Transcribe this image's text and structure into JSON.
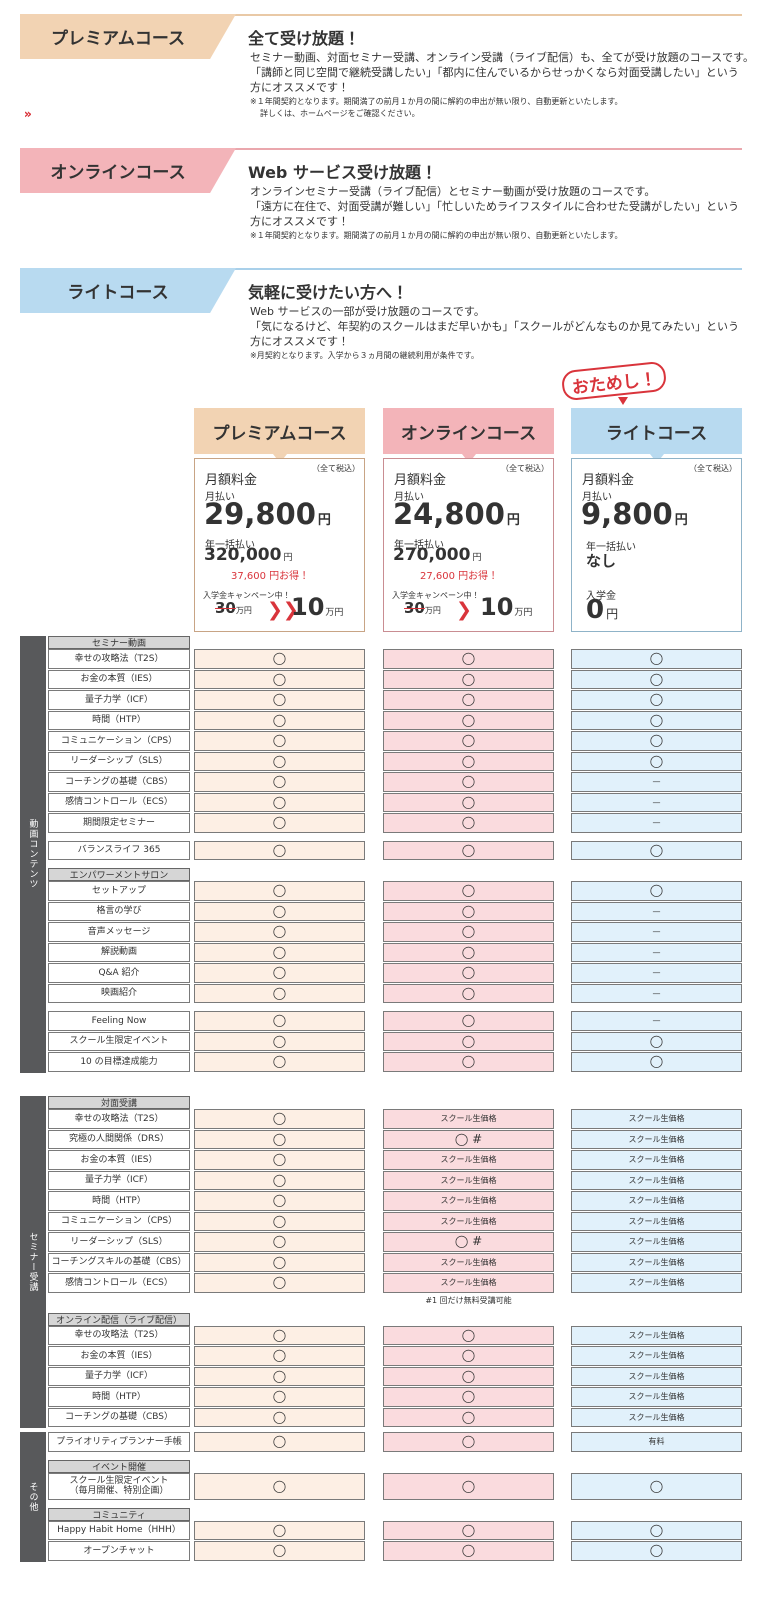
{
  "courses": [
    {
      "label": "プレミアムコース",
      "heading": "全て受け放題！",
      "lines": [
        "セミナー動画、対面セミナー受講、オンライン受講（ライブ配信）も、全てが受け放題のコースです。",
        "「講師と同じ空間で継続受講したい」「都内に住んでいるからせっかくなら対面受講したい」という",
        "方にオススメです！"
      ],
      "notes": [
        "※１年間契約となります。期間満了の前月１か月の間に解約の申出が無い限り、自動更新といたします。",
        "詳しくは、ホームページをご確認ください。"
      ]
    },
    {
      "label": "オンラインコース",
      "heading": "Web サービス受け放題！",
      "lines": [
        "オンラインセミナー受講（ライブ配信）とセミナー動画が受け放題のコースです。",
        "「遠方に在住で、対面受講が難しい」「忙しいためライフスタイルに合わせた受講がしたい」という",
        "方にオススメです！"
      ],
      "notes": [
        "※１年間契約となります。期間満了の前月１か月の間に解約の申出が無い限り、自動更新といたします。"
      ]
    },
    {
      "label": "ライトコース",
      "heading": "気軽に受けたい方へ！",
      "lines": [
        "Web サービスの一部が受け放題のコースです。",
        "「気になるけど、年契約のスクールはまだ早いかも」「スクールがどんなものか見てみたい」という",
        "方にオススメです！"
      ],
      "notes": [
        "※月契約となります。入学から３ヵ月間の継続利用が条件です。"
      ]
    }
  ],
  "badge": "おためし！",
  "plans": [
    {
      "name": "プレミアムコース",
      "tax_note": "（全て税込）",
      "monthly_label": "月額料金",
      "monthly_sub": "月払い",
      "monthly_price": "29,800",
      "price_unit": "円",
      "annual_label": "年一括払い",
      "annual_price": "320,000",
      "annual_unit": "円",
      "saving": "37,600 円お得！",
      "campaign": "入学金キャンペーン中！",
      "old_fee": "30",
      "old_unit": "万円",
      "new_fee": "10",
      "new_unit": "万円"
    },
    {
      "name": "オンラインコース",
      "tax_note": "（全て税込）",
      "monthly_label": "月額料金",
      "monthly_sub": "月払い",
      "monthly_price": "24,800",
      "price_unit": "円",
      "annual_label": "年一括払い",
      "annual_price": "270,000",
      "annual_unit": "円",
      "saving": "27,600 円お得！",
      "campaign": "入学金キャンペーン中！",
      "old_fee": "30",
      "old_unit": "万円",
      "new_fee": "10",
      "new_unit": "万円"
    },
    {
      "name": "ライトコース",
      "tax_note": "（全て税込）",
      "monthly_label": "月額料金",
      "monthly_sub": "月払い",
      "monthly_price": "9,800",
      "price_unit": "円",
      "annual_label": "年一括払い",
      "annual_value": "なし",
      "fee_label": "入学金",
      "fee": "0",
      "fee_unit": "円"
    }
  ],
  "table": {
    "groups": [
      {
        "side": "動画コンテンツ",
        "sections": [
          {
            "header": "セミナー動画",
            "rows": [
              {
                "label": "幸せの攻略法（T2S）",
                "cells": [
                  "◯",
                  "◯",
                  "◯"
                ]
              },
              {
                "label": "お金の本質（IES）",
                "cells": [
                  "◯",
                  "◯",
                  "◯"
                ]
              },
              {
                "label": "量子力学（ICF）",
                "cells": [
                  "◯",
                  "◯",
                  "◯"
                ]
              },
              {
                "label": "時間（HTP）",
                "cells": [
                  "◯",
                  "◯",
                  "◯"
                ]
              },
              {
                "label": "コミュニケーション（CPS）",
                "cells": [
                  "◯",
                  "◯",
                  "◯"
                ]
              },
              {
                "label": "リーダーシップ（SLS）",
                "cells": [
                  "◯",
                  "◯",
                  "◯"
                ]
              },
              {
                "label": "コーチングの基礎（CBS）",
                "cells": [
                  "◯",
                  "◯",
                  "—"
                ]
              },
              {
                "label": "感情コントロール（ECS）",
                "cells": [
                  "◯",
                  "◯",
                  "—"
                ]
              },
              {
                "label": "期間限定セミナー",
                "cells": [
                  "◯",
                  "◯",
                  "—"
                ]
              }
            ]
          },
          {
            "rows": [
              {
                "label": "バランスライフ 365",
                "cells": [
                  "◯",
                  "◯",
                  "◯"
                ]
              }
            ]
          },
          {
            "header": "エンパワーメントサロン",
            "rows": [
              {
                "label": "セットアップ",
                "cells": [
                  "◯",
                  "◯",
                  "◯"
                ]
              },
              {
                "label": "格言の学び",
                "cells": [
                  "◯",
                  "◯",
                  "—"
                ]
              },
              {
                "label": "音声メッセージ",
                "cells": [
                  "◯",
                  "◯",
                  "—"
                ]
              },
              {
                "label": "解説動画",
                "cells": [
                  "◯",
                  "◯",
                  "—"
                ]
              },
              {
                "label": "Q&A 紹介",
                "cells": [
                  "◯",
                  "◯",
                  "—"
                ]
              },
              {
                "label": "映画紹介",
                "cells": [
                  "◯",
                  "◯",
                  "—"
                ]
              }
            ]
          },
          {
            "rows": [
              {
                "label": "Feeling Now",
                "cells": [
                  "◯",
                  "◯",
                  "—"
                ]
              },
              {
                "label": "スクール生限定イベント",
                "cells": [
                  "◯",
                  "◯",
                  "◯"
                ]
              },
              {
                "label": "10 の目標達成能力",
                "cells": [
                  "◯",
                  "◯",
                  "◯"
                ]
              }
            ]
          }
        ]
      },
      {
        "side": "セミナー受講",
        "sections": [
          {
            "header": "対面受講",
            "rows": [
              {
                "label": "幸せの攻略法（T2S）",
                "cells": [
                  "◯",
                  "スクール生価格",
                  "スクール生価格"
                ]
              },
              {
                "label": "究極の人間関係（DRS）",
                "cells": [
                  "◯",
                  "◯ #",
                  "スクール生価格"
                ]
              },
              {
                "label": "お金の本質（IES）",
                "cells": [
                  "◯",
                  "スクール生価格",
                  "スクール生価格"
                ]
              },
              {
                "label": "量子力学（ICF）",
                "cells": [
                  "◯",
                  "スクール生価格",
                  "スクール生価格"
                ]
              },
              {
                "label": "時間（HTP）",
                "cells": [
                  "◯",
                  "スクール生価格",
                  "スクール生価格"
                ]
              },
              {
                "label": "コミュニケーション（CPS）",
                "cells": [
                  "◯",
                  "スクール生価格",
                  "スクール生価格"
                ]
              },
              {
                "label": "リーダーシップ（SLS）",
                "cells": [
                  "◯",
                  "◯ #",
                  "スクール生価格"
                ]
              },
              {
                "label": "コーチングスキルの基礎（CBS）",
                "cells": [
                  "◯",
                  "スクール生価格",
                  "スクール生価格"
                ]
              },
              {
                "label": "感情コントロール（ECS）",
                "cells": [
                  "◯",
                  "スクール生価格",
                  "スクール生価格"
                ]
              }
            ],
            "note": "#1 回だけ無料受講可能"
          },
          {
            "header": "オンライン配信（ライブ配信）",
            "rows": [
              {
                "label": "幸せの攻略法（T2S）",
                "cells": [
                  "◯",
                  "◯",
                  "スクール生価格"
                ]
              },
              {
                "label": "お金の本質（IES）",
                "cells": [
                  "◯",
                  "◯",
                  "スクール生価格"
                ]
              },
              {
                "label": "量子力学（ICF）",
                "cells": [
                  "◯",
                  "◯",
                  "スクール生価格"
                ]
              },
              {
                "label": "時間（HTP）",
                "cells": [
                  "◯",
                  "◯",
                  "スクール生価格"
                ]
              },
              {
                "label": "コーチングの基礎（CBS）",
                "cells": [
                  "◯",
                  "◯",
                  "スクール生価格"
                ]
              }
            ]
          }
        ]
      },
      {
        "side": "その他",
        "sections": [
          {
            "rows": [
              {
                "label": "プライオリティプランナー手帳",
                "cells": [
                  "◯",
                  "◯",
                  "有料"
                ]
              }
            ]
          },
          {
            "header": "イベント開催",
            "rows": [
              {
                "label": "スクール生限定イベント\n（毎月開催、特別企画）",
                "cells": [
                  "◯",
                  "◯",
                  "◯"
                ]
              }
            ]
          },
          {
            "header": "コミュニティ",
            "rows": [
              {
                "label": "Happy Habit Home（HHH）",
                "cells": [
                  "◯",
                  "◯",
                  "◯"
                ]
              },
              {
                "label": "オープンチャット",
                "cells": [
                  "◯",
                  "◯",
                  "◯"
                ]
              }
            ]
          }
        ]
      }
    ]
  }
}
